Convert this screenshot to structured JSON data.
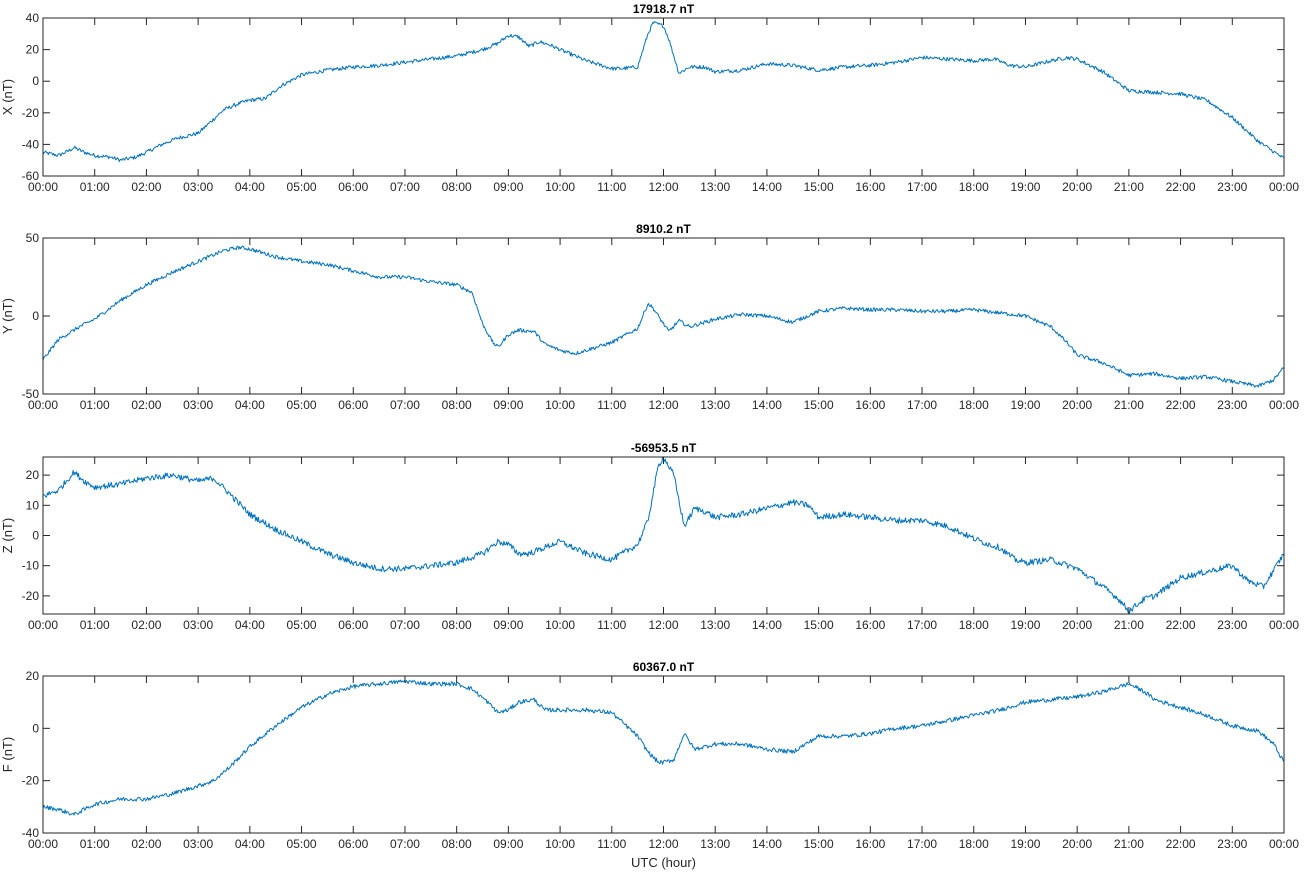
{
  "chart_data": [
    {
      "type": "line",
      "title": "17918.7 nT",
      "ylabel": "X (nT)",
      "xlabel": "",
      "ylim": [
        -60,
        40
      ],
      "yticks": [
        40,
        20,
        0,
        -20,
        -40,
        -60
      ],
      "xlim": [
        0,
        24
      ],
      "xtick_labels": [
        "00:00",
        "01:00",
        "02:00",
        "03:00",
        "04:00",
        "05:00",
        "06:00",
        "07:00",
        "08:00",
        "09:00",
        "10:00",
        "11:00",
        "12:00",
        "13:00",
        "14:00",
        "15:00",
        "16:00",
        "17:00",
        "18:00",
        "19:00",
        "20:00",
        "21:00",
        "22:00",
        "23:00",
        "00:00"
      ],
      "color": "#0072bd",
      "noise": 1.2,
      "series": [
        {
          "x": [
            0,
            0.3,
            0.5,
            0.6,
            0.8,
            1.0,
            1.3,
            1.5,
            1.8,
            2.0,
            2.3,
            2.6,
            3.0,
            3.2,
            3.5,
            3.8,
            4.0,
            4.3,
            4.6,
            5.0,
            5.5,
            6.0,
            6.5,
            7.0,
            7.5,
            8.0,
            8.5,
            8.8,
            9.0,
            9.2,
            9.4,
            9.6,
            9.8,
            10.0,
            10.5,
            11.0,
            11.2,
            11.5,
            11.7,
            11.8,
            12.0,
            12.1,
            12.3,
            12.5,
            12.8,
            13.0,
            13.5,
            14.0,
            14.5,
            15.0,
            15.5,
            16.0,
            16.5,
            17.0,
            17.5,
            18.0,
            18.4,
            18.7,
            19.0,
            19.5,
            19.8,
            20.0,
            20.5,
            21.0,
            21.5,
            22.0,
            22.5,
            23.0,
            23.5,
            24.0
          ],
          "y": [
            -45,
            -47,
            -44,
            -42,
            -45,
            -47,
            -48,
            -50,
            -48,
            -45,
            -40,
            -36,
            -33,
            -27,
            -18,
            -14,
            -12,
            -11,
            -3,
            4,
            7,
            9,
            10,
            12,
            14,
            16,
            20,
            24,
            29,
            28,
            22,
            25,
            23,
            20,
            13,
            8,
            8,
            9,
            30,
            37,
            35,
            27,
            5,
            9,
            9,
            6,
            7,
            11,
            10,
            7,
            9,
            10,
            12,
            15,
            14,
            13,
            14,
            10,
            9,
            13,
            15,
            14,
            6,
            -6,
            -7,
            -8,
            -12,
            -23,
            -38,
            -49
          ]
        }
      ]
    },
    {
      "type": "line",
      "title": "8910.2 nT",
      "ylabel": "Y (nT)",
      "xlabel": "",
      "ylim": [
        -50,
        50
      ],
      "yticks": [
        50,
        0,
        -50
      ],
      "xlim": [
        0,
        24
      ],
      "xtick_labels": [
        "00:00",
        "01:00",
        "02:00",
        "03:00",
        "04:00",
        "05:00",
        "06:00",
        "07:00",
        "08:00",
        "09:00",
        "10:00",
        "11:00",
        "12:00",
        "13:00",
        "14:00",
        "15:00",
        "16:00",
        "17:00",
        "18:00",
        "19:00",
        "20:00",
        "21:00",
        "22:00",
        "23:00",
        "00:00"
      ],
      "color": "#0072bd",
      "noise": 1.2,
      "series": [
        {
          "x": [
            0,
            0.3,
            0.7,
            1.0,
            1.5,
            2.0,
            2.5,
            3.0,
            3.5,
            3.8,
            4.0,
            4.5,
            5.0,
            5.5,
            6.0,
            6.5,
            7.0,
            7.5,
            8.0,
            8.3,
            8.5,
            8.7,
            8.8,
            9.0,
            9.2,
            9.5,
            9.7,
            10.0,
            10.3,
            10.7,
            11.0,
            11.5,
            11.7,
            11.8,
            12.0,
            12.1,
            12.3,
            12.5,
            13.0,
            13.5,
            14.0,
            14.5,
            15.0,
            15.5,
            16.0,
            16.5,
            17.0,
            17.5,
            18.0,
            18.5,
            19.0,
            19.5,
            19.8,
            20.0,
            20.5,
            21.0,
            21.5,
            22.0,
            22.5,
            23.0,
            23.5,
            23.8,
            24.0
          ],
          "y": [
            -28,
            -15,
            -7,
            -2,
            10,
            20,
            28,
            35,
            42,
            44,
            43,
            38,
            35,
            33,
            29,
            25,
            25,
            22,
            20,
            15,
            -5,
            -17,
            -20,
            -12,
            -9,
            -10,
            -18,
            -22,
            -24,
            -20,
            -17,
            -8,
            8,
            5,
            -5,
            -10,
            -3,
            -7,
            -2,
            1,
            0,
            -4,
            3,
            5,
            4,
            4,
            3,
            3,
            4,
            2,
            0,
            -7,
            -17,
            -25,
            -30,
            -38,
            -37,
            -40,
            -39,
            -42,
            -45,
            -41,
            -33
          ]
        }
      ]
    },
    {
      "type": "line",
      "title": "-56953.5 nT",
      "ylabel": "Z (nT)",
      "xlabel": "",
      "ylim": [
        -26,
        26
      ],
      "yticks": [
        20,
        10,
        0,
        -10,
        -20
      ],
      "xlim": [
        0,
        24
      ],
      "xtick_labels": [
        "00:00",
        "01:00",
        "02:00",
        "03:00",
        "04:00",
        "05:00",
        "06:00",
        "07:00",
        "08:00",
        "09:00",
        "10:00",
        "11:00",
        "12:00",
        "13:00",
        "14:00",
        "15:00",
        "16:00",
        "17:00",
        "18:00",
        "19:00",
        "20:00",
        "21:00",
        "22:00",
        "23:00",
        "00:00"
      ],
      "color": "#0072bd",
      "noise": 1.0,
      "series": [
        {
          "x": [
            0,
            0.3,
            0.6,
            0.8,
            1.0,
            1.5,
            2.0,
            2.5,
            3.0,
            3.3,
            3.6,
            4.0,
            4.5,
            5.0,
            5.5,
            6.0,
            6.5,
            7.0,
            7.5,
            8.0,
            8.5,
            8.8,
            9.0,
            9.2,
            9.4,
            9.7,
            10.0,
            10.5,
            11.0,
            11.5,
            11.7,
            11.9,
            12.0,
            12.2,
            12.4,
            12.6,
            12.8,
            13.0,
            13.5,
            14.0,
            14.5,
            14.8,
            15.0,
            15.5,
            16.0,
            16.5,
            17.0,
            17.5,
            18.0,
            18.3,
            18.5,
            18.8,
            19.0,
            19.5,
            20.0,
            20.5,
            20.8,
            21.0,
            21.3,
            21.5,
            22.0,
            22.5,
            23.0,
            23.3,
            23.6,
            24.0
          ],
          "y": [
            13,
            15,
            21,
            18,
            16,
            17,
            19,
            20,
            18,
            19,
            14,
            7,
            2,
            -2,
            -6,
            -9,
            -11,
            -11,
            -10,
            -9,
            -6,
            -2,
            -3,
            -6,
            -6,
            -4,
            -2,
            -6,
            -8,
            -3,
            5,
            23,
            26,
            20,
            3,
            9,
            8,
            6,
            7,
            9,
            11,
            10,
            6,
            7,
            6,
            5,
            5,
            3,
            -1,
            -3,
            -4,
            -8,
            -9,
            -8,
            -11,
            -17,
            -21,
            -25,
            -21,
            -20,
            -14,
            -12,
            -10,
            -15,
            -17,
            -6
          ]
        }
      ]
    },
    {
      "type": "line",
      "title": "60367.0 nT",
      "ylabel": "F (nT)",
      "xlabel": "UTC (hour)",
      "ylim": [
        -40,
        20
      ],
      "yticks": [
        20,
        0,
        -20,
        -40
      ],
      "xlim": [
        0,
        24
      ],
      "xtick_labels": [
        "00:00",
        "01:00",
        "02:00",
        "03:00",
        "04:00",
        "05:00",
        "06:00",
        "07:00",
        "08:00",
        "09:00",
        "10:00",
        "11:00",
        "12:00",
        "13:00",
        "14:00",
        "15:00",
        "16:00",
        "17:00",
        "18:00",
        "19:00",
        "20:00",
        "21:00",
        "22:00",
        "23:00",
        "00:00"
      ],
      "color": "#0072bd",
      "noise": 0.8,
      "series": [
        {
          "x": [
            0,
            0.3,
            0.6,
            0.8,
            1.0,
            1.5,
            2.0,
            2.5,
            3.0,
            3.3,
            3.6,
            4.0,
            4.5,
            5.0,
            5.5,
            6.0,
            6.5,
            7.0,
            7.5,
            8.0,
            8.3,
            8.6,
            8.8,
            9.0,
            9.2,
            9.5,
            9.7,
            10.0,
            10.5,
            11.0,
            11.5,
            11.7,
            11.9,
            12.0,
            12.2,
            12.4,
            12.6,
            13.0,
            13.5,
            14.0,
            14.5,
            15.0,
            15.5,
            16.0,
            16.5,
            17.0,
            17.5,
            18.0,
            18.5,
            19.0,
            19.5,
            20.0,
            20.5,
            21.0,
            21.3,
            21.5,
            22.0,
            22.5,
            23.0,
            23.5,
            23.8,
            24.0
          ],
          "y": [
            -30,
            -31,
            -33,
            -31,
            -29,
            -27,
            -27,
            -25,
            -22,
            -20,
            -15,
            -7,
            1,
            8,
            13,
            16,
            17,
            18,
            17,
            17,
            15,
            10,
            6,
            7,
            10,
            11,
            7,
            7,
            7,
            6,
            -3,
            -9,
            -13,
            -13,
            -12,
            -2,
            -8,
            -6,
            -6,
            -8,
            -9,
            -3,
            -3,
            -2,
            0,
            1,
            3,
            5,
            7,
            10,
            11,
            12,
            14,
            17,
            14,
            11,
            8,
            5,
            1,
            -1,
            -6,
            -13
          ]
        }
      ]
    }
  ]
}
